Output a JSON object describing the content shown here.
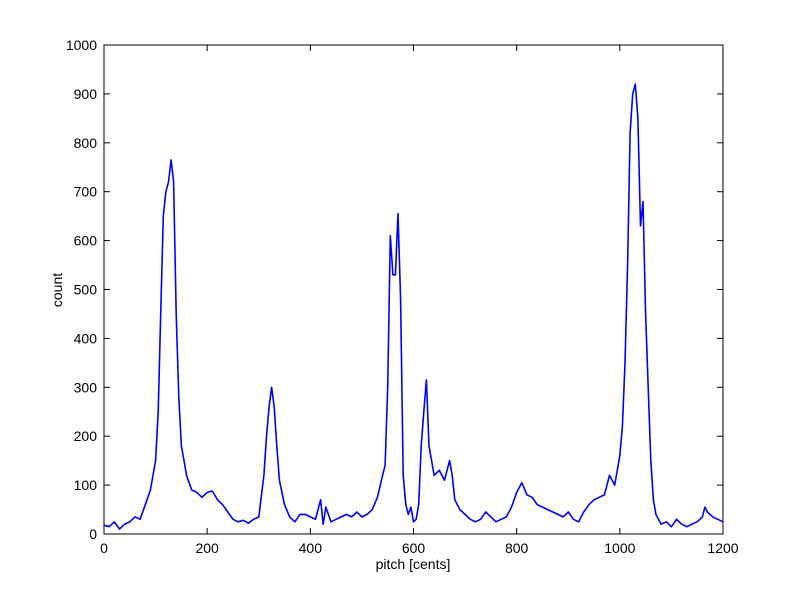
{
  "chart_data": {
    "type": "line",
    "xlabel": "pitch [cents]",
    "ylabel": "count",
    "xlim": [
      0,
      1200
    ],
    "ylim": [
      0,
      1000
    ],
    "xticks": [
      0,
      200,
      400,
      600,
      800,
      1000,
      1200
    ],
    "yticks": [
      0,
      100,
      200,
      300,
      400,
      500,
      600,
      700,
      800,
      900,
      1000
    ],
    "grid": false,
    "box": true,
    "series": [
      {
        "color": "#0000ff",
        "x": [
          0,
          10,
          20,
          30,
          40,
          50,
          60,
          70,
          80,
          90,
          100,
          105,
          110,
          115,
          120,
          125,
          130,
          135,
          140,
          145,
          150,
          155,
          160,
          170,
          180,
          190,
          200,
          210,
          220,
          230,
          240,
          250,
          260,
          270,
          280,
          290,
          300,
          310,
          315,
          320,
          325,
          330,
          335,
          340,
          350,
          360,
          370,
          380,
          390,
          400,
          410,
          420,
          425,
          430,
          440,
          450,
          460,
          470,
          480,
          490,
          500,
          510,
          520,
          530,
          540,
          545,
          550,
          555,
          560,
          565,
          570,
          575,
          580,
          585,
          590,
          595,
          600,
          605,
          610,
          615,
          620,
          625,
          630,
          635,
          640,
          650,
          660,
          670,
          675,
          680,
          690,
          700,
          710,
          720,
          730,
          740,
          750,
          760,
          770,
          780,
          790,
          800,
          810,
          820,
          830,
          840,
          850,
          860,
          870,
          880,
          890,
          900,
          910,
          920,
          930,
          940,
          950,
          960,
          970,
          980,
          990,
          1000,
          1005,
          1010,
          1015,
          1020,
          1025,
          1030,
          1035,
          1040,
          1045,
          1050,
          1055,
          1060,
          1065,
          1070,
          1080,
          1090,
          1100,
          1110,
          1120,
          1130,
          1140,
          1150,
          1160,
          1165,
          1170,
          1180,
          1190,
          1200
        ],
        "y": [
          18,
          15,
          25,
          10,
          20,
          25,
          35,
          30,
          60,
          90,
          150,
          250,
          450,
          650,
          700,
          720,
          765,
          720,
          450,
          280,
          180,
          150,
          120,
          90,
          85,
          75,
          85,
          88,
          70,
          60,
          45,
          30,
          25,
          28,
          22,
          30,
          35,
          120,
          200,
          260,
          300,
          260,
          180,
          110,
          60,
          35,
          25,
          40,
          40,
          35,
          30,
          70,
          20,
          55,
          25,
          30,
          35,
          40,
          35,
          45,
          35,
          40,
          50,
          75,
          120,
          140,
          300,
          610,
          530,
          530,
          655,
          480,
          120,
          60,
          40,
          55,
          25,
          30,
          60,
          180,
          250,
          315,
          180,
          150,
          120,
          130,
          110,
          150,
          120,
          70,
          50,
          40,
          30,
          25,
          30,
          45,
          35,
          25,
          30,
          35,
          55,
          85,
          105,
          80,
          75,
          60,
          55,
          50,
          45,
          40,
          35,
          45,
          30,
          25,
          45,
          60,
          70,
          75,
          80,
          120,
          100,
          160,
          220,
          350,
          550,
          820,
          900,
          920,
          850,
          630,
          680,
          450,
          300,
          150,
          70,
          40,
          20,
          25,
          15,
          30,
          20,
          15,
          20,
          25,
          35,
          55,
          45,
          35,
          30,
          25
        ]
      }
    ]
  }
}
